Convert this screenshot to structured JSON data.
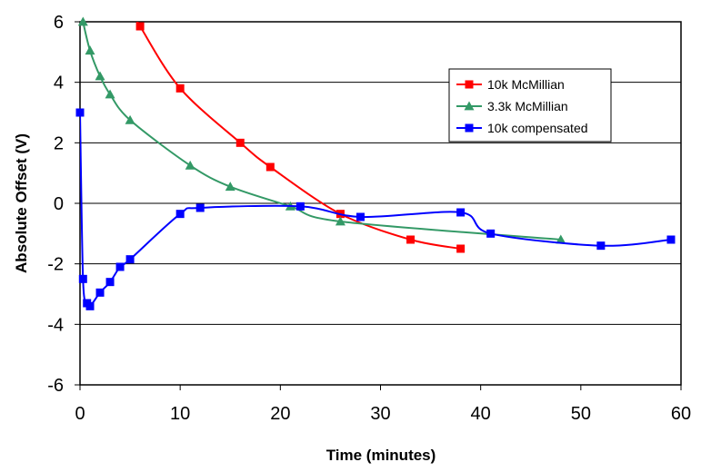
{
  "chart_data": {
    "type": "line",
    "title": "",
    "xlabel": "Time (minutes)",
    "ylabel": "Absolute Offset (V)",
    "xlim": [
      0,
      60
    ],
    "ylim": [
      -6,
      6
    ],
    "x_ticks": [
      "0",
      "10",
      "20",
      "30",
      "40",
      "50",
      "60"
    ],
    "y_ticks": [
      "6",
      "4",
      "2",
      "0",
      "-2",
      "-4",
      "-6"
    ],
    "grid": "horizontal",
    "legend_position": "top-right",
    "series": [
      {
        "name": "10k McMillian",
        "color": "#ff0000",
        "marker": "square",
        "points": [
          [
            6,
            5.85
          ],
          [
            10,
            3.8
          ],
          [
            16,
            2.0
          ],
          [
            19,
            1.2
          ],
          [
            26,
            -0.35
          ],
          [
            33,
            -1.2
          ],
          [
            38,
            -1.5
          ]
        ],
        "lead_in": [
          [
            5.3,
            6.3
          ]
        ]
      },
      {
        "name": "3.3k McMillian",
        "color": "#339966",
        "marker": "triangle",
        "points": [
          [
            0.3,
            6.0
          ],
          [
            1,
            5.05
          ],
          [
            2,
            4.2
          ],
          [
            3,
            3.6
          ],
          [
            5,
            2.75
          ],
          [
            11,
            1.25
          ],
          [
            15,
            0.55
          ],
          [
            21,
            -0.1
          ],
          [
            26,
            -0.6
          ],
          [
            48,
            -1.2
          ]
        ]
      },
      {
        "name": "10k compensated",
        "color": "#0000ff",
        "marker": "square",
        "points": [
          [
            0,
            3.0
          ],
          [
            0.3,
            -2.5
          ],
          [
            0.7,
            -3.3
          ],
          [
            1,
            -3.4
          ],
          [
            2,
            -2.95
          ],
          [
            3,
            -2.6
          ],
          [
            4,
            -2.1
          ],
          [
            5,
            -1.85
          ],
          [
            10,
            -0.35
          ],
          [
            12,
            -0.15
          ],
          [
            22,
            -0.1
          ],
          [
            28,
            -0.45
          ],
          [
            38,
            -0.3
          ],
          [
            41,
            -1.0
          ],
          [
            52,
            -1.4
          ],
          [
            59,
            -1.2
          ]
        ]
      }
    ]
  }
}
